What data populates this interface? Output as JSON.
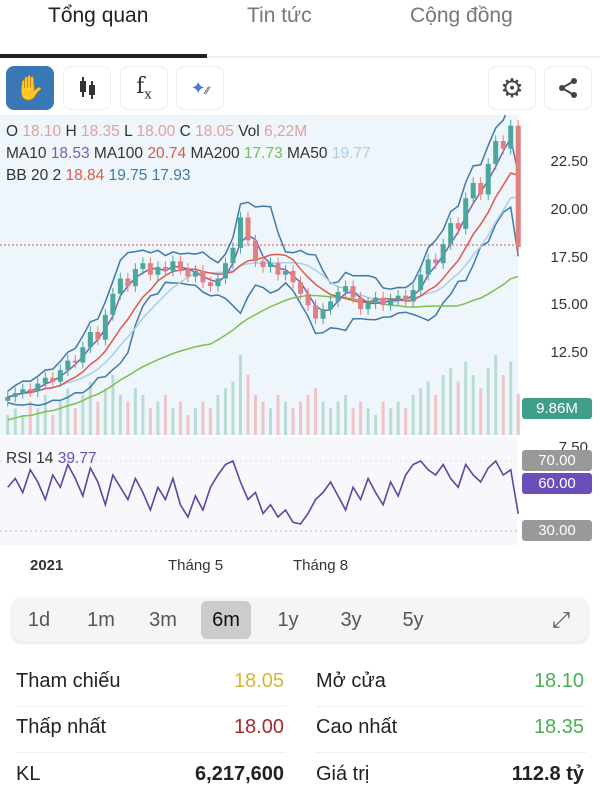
{
  "tabs": [
    {
      "label": "Tổng quan",
      "active": true
    },
    {
      "label": "Tin tức"
    },
    {
      "label": "Cộng đồng"
    }
  ],
  "toolbar": {
    "icons": [
      "hand-pan-icon",
      "candlestick-icon",
      "function-fx-icon",
      "magic-sparkle-icon",
      "gear-icon",
      "share-icon"
    ]
  },
  "legend": {
    "o_label": "O",
    "o": "18.10",
    "h_label": "H",
    "h": "18.35",
    "l_label": "L",
    "l": "18.00",
    "c_label": "C",
    "c": "18.05",
    "vol_label": "Vol",
    "vol": "6,22M",
    "ma10_label": "MA10",
    "ma10": "18.53",
    "ma100_label": "MA100",
    "ma100": "20.74",
    "ma200_label": "MA200",
    "ma200": "17.73",
    "ma50_label": "MA50",
    "ma50": "19.77",
    "bb_label": "BB 20 2",
    "bb1": "18.84",
    "bb2": "19.75",
    "bb3": "17.93",
    "rsi_label": "RSI 14",
    "rsi": "39.77"
  },
  "colors": {
    "up": "#4aa89a",
    "down": "#e08080",
    "ma10": "#7a5fb0",
    "ma100": "#e0584a",
    "ma200": "#7cc04a",
    "ma50": "#a8d0ea",
    "bb": "#3f7aa8",
    "rsi": "#5a48a0",
    "volume_tag": "#3f9e8a",
    "rsi_tag": "#6a4fb8",
    "gray_tag": "#999999",
    "ref": "#d4b73a",
    "green": "#4caf50",
    "red": "#a52a2a"
  },
  "chart_data": {
    "type": "candlestick",
    "price_axis": [
      "22.50",
      "20.00",
      "17.50",
      "15.00",
      "12.50",
      "7.50"
    ],
    "ylim": [
      7.0,
      24.5
    ],
    "volume_tag": "9.86M",
    "rsi_tags": [
      "70.00",
      "60.00",
      "30.00"
    ],
    "time_labels": [
      "2021",
      "Tháng 5",
      "Tháng 8"
    ],
    "close": [
      10.2,
      10.4,
      10.6,
      10.5,
      10.9,
      11.2,
      11.0,
      11.6,
      12.1,
      12.0,
      12.8,
      13.6,
      13.2,
      14.5,
      15.6,
      16.4,
      16.0,
      16.9,
      17.2,
      16.6,
      17.0,
      16.8,
      17.3,
      16.9,
      16.5,
      16.8,
      16.2,
      16.0,
      16.4,
      17.2,
      18.0,
      19.6,
      18.4,
      17.3,
      17.0,
      17.2,
      16.6,
      16.8,
      16.2,
      15.6,
      15.0,
      14.3,
      14.8,
      15.2,
      15.7,
      16.0,
      15.4,
      14.8,
      15.1,
      15.4,
      15.0,
      15.3,
      15.5,
      15.2,
      15.8,
      16.6,
      17.4,
      17.2,
      18.2,
      19.3,
      19.0,
      20.6,
      21.4,
      20.8,
      22.4,
      23.6,
      23.2,
      24.4,
      18.05
    ],
    "volume": [
      3,
      4,
      3,
      5,
      4,
      6,
      3,
      5,
      7,
      4,
      6,
      8,
      5,
      7,
      9,
      6,
      5,
      7,
      6,
      4,
      5,
      6,
      4,
      5,
      3,
      4,
      5,
      4,
      6,
      7,
      8,
      12,
      9,
      6,
      5,
      4,
      6,
      5,
      4,
      5,
      6,
      7,
      5,
      4,
      5,
      6,
      4,
      5,
      4,
      3,
      5,
      4,
      5,
      4,
      6,
      7,
      8,
      6,
      9,
      10,
      8,
      11,
      9,
      7,
      10,
      12,
      9,
      11,
      6.2
    ],
    "rsi": [
      55,
      60,
      52,
      65,
      58,
      48,
      62,
      55,
      68,
      60,
      50,
      66,
      58,
      45,
      62,
      55,
      48,
      60,
      52,
      42,
      55,
      48,
      60,
      45,
      38,
      50,
      42,
      55,
      62,
      68,
      70,
      58,
      48,
      52,
      40,
      45,
      38,
      42,
      35,
      34,
      40,
      48,
      52,
      58,
      50,
      42,
      55,
      48,
      60,
      52,
      45,
      58,
      50,
      62,
      68,
      70,
      65,
      62,
      68,
      60,
      55,
      68,
      62,
      58,
      66,
      70,
      62,
      65,
      39.77
    ]
  },
  "ranges": [
    {
      "label": "1d"
    },
    {
      "label": "1m"
    },
    {
      "label": "3m"
    },
    {
      "label": "6m",
      "selected": true
    },
    {
      "label": "1y"
    },
    {
      "label": "3y"
    },
    {
      "label": "5y"
    }
  ],
  "stats": [
    {
      "l_label": "Tham chiếu",
      "l_value": "18.05",
      "l_color": "ref",
      "r_label": "Mở cửa",
      "r_value": "18.10",
      "r_color": "green"
    },
    {
      "l_label": "Thấp nhất",
      "l_value": "18.00",
      "l_color": "red",
      "r_label": "Cao nhất",
      "r_value": "18.35",
      "r_color": "green"
    },
    {
      "l_label": "KL",
      "l_value": "6,217,600",
      "l_color": "dark",
      "r_label": "Giá trị",
      "r_value": "112.8 tỷ",
      "r_color": "dark"
    }
  ]
}
